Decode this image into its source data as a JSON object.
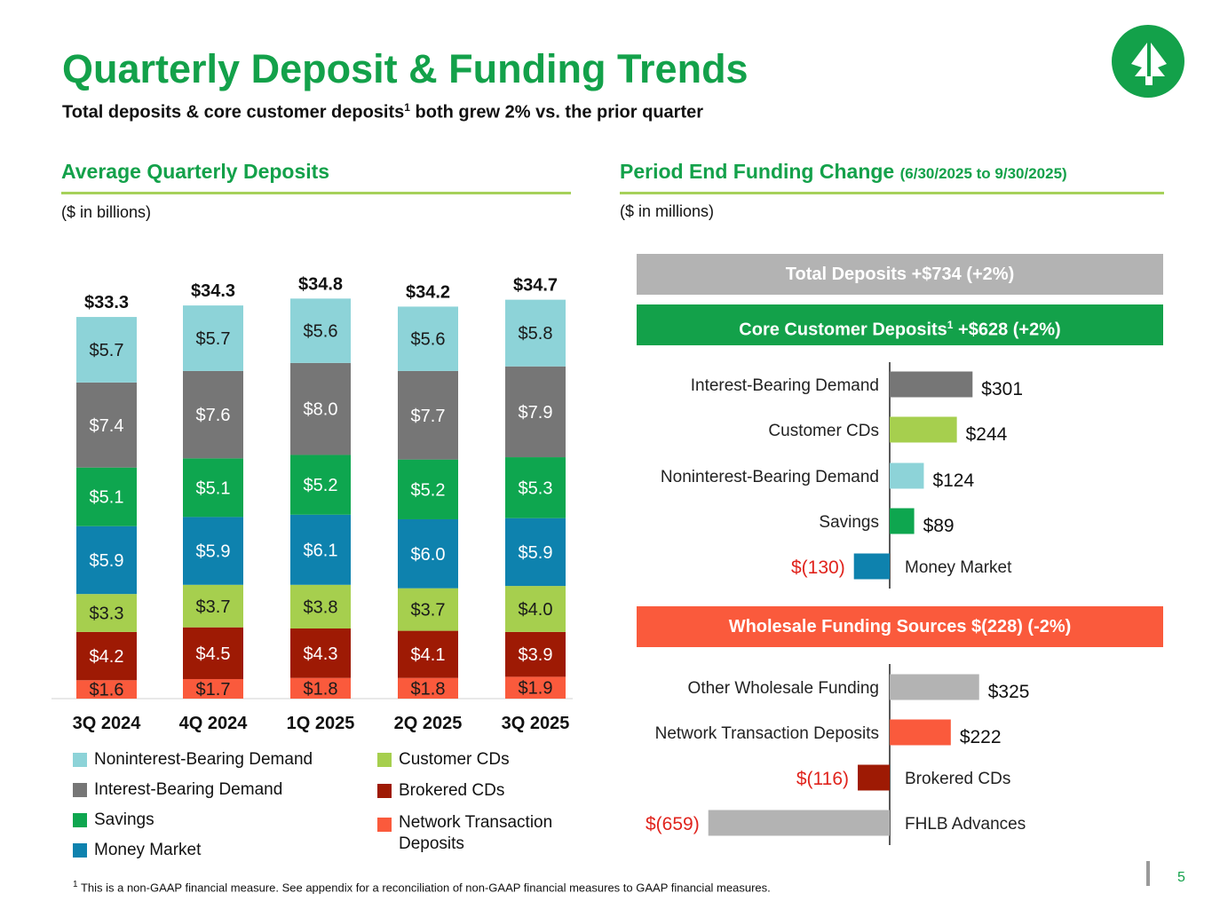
{
  "header": {
    "title": "Quarterly Deposit & Funding Trends",
    "subtitle_main": "Total deposits & core customer deposits",
    "subtitle_sup": "1",
    "subtitle_rest": " both grew 2% vs. the prior quarter"
  },
  "left_section": {
    "heading": "Average Quarterly Deposits",
    "units": "($ in billions)"
  },
  "right_section": {
    "heading": "Period End Funding Change",
    "heading_suffix": "(6/30/2025 to 9/30/2025)",
    "units": "($ in millions)",
    "total_banner": "Total Deposits +$734 (+2%)",
    "core_banner_main": "Core Customer Deposits",
    "core_banner_sup": "1",
    "core_banner_rest": " +$628 (+2%)",
    "wholesale_banner": "Wholesale Funding Sources $(228) (-2%)"
  },
  "colors": {
    "brand_green": "#13a14a",
    "rule_green": "#a6d15a",
    "total_banner": "#b3b3b3",
    "core_banner": "#13a14a",
    "wholesale_banner": "#fa5a3c",
    "negative_text": "#e0231c"
  },
  "chart_data": [
    {
      "type": "bar",
      "stacked": true,
      "title": "Average Quarterly Deposits",
      "units": "$ in billions",
      "categories": [
        "3Q 2024",
        "4Q 2024",
        "1Q 2025",
        "2Q 2025",
        "3Q 2025"
      ],
      "totals": [
        "$33.3",
        "$34.3",
        "$34.8",
        "$34.2",
        "$34.7"
      ],
      "series": [
        {
          "name": "Network Transaction Deposits",
          "color": "#fa5a3c",
          "text_color": "#1a1a1a",
          "values": [
            1.6,
            1.7,
            1.8,
            1.8,
            1.9
          ],
          "labels": [
            "$1.6",
            "$1.7",
            "$1.8",
            "$1.8",
            "$1.9"
          ]
        },
        {
          "name": "Brokered CDs",
          "color": "#9e1a04",
          "text_color": "#ffffff",
          "values": [
            4.2,
            4.5,
            4.3,
            4.1,
            3.9
          ],
          "labels": [
            "$4.2",
            "$4.5",
            "$4.3",
            "$4.1",
            "$3.9"
          ]
        },
        {
          "name": "Customer CDs",
          "color": "#a6cf4e",
          "text_color": "#1a1a1a",
          "values": [
            3.3,
            3.7,
            3.8,
            3.7,
            4.0
          ],
          "labels": [
            "$3.3",
            "$3.7",
            "$3.8",
            "$3.7",
            "$4.0"
          ]
        },
        {
          "name": "Money Market",
          "color": "#0e82ae",
          "text_color": "#ffffff",
          "values": [
            5.9,
            5.9,
            6.1,
            6.0,
            5.9
          ],
          "labels": [
            "$5.9",
            "$5.9",
            "$6.1",
            "$6.0",
            "$5.9"
          ]
        },
        {
          "name": "Savings",
          "color": "#0ea64f",
          "text_color": "#ffffff",
          "values": [
            5.1,
            5.1,
            5.2,
            5.2,
            5.3
          ],
          "labels": [
            "$5.1",
            "$5.1",
            "$5.2",
            "$5.2",
            "$5.3"
          ]
        },
        {
          "name": "Interest-Bearing Demand",
          "color": "#767676",
          "text_color": "#ffffff",
          "values": [
            7.4,
            7.6,
            8.0,
            7.7,
            7.9
          ],
          "labels": [
            "$7.4",
            "$7.6",
            "$8.0",
            "$7.7",
            "$7.9"
          ]
        },
        {
          "name": "Noninterest-Bearing Demand",
          "color": "#8dd3d8",
          "text_color": "#1a1a1a",
          "values": [
            5.7,
            5.7,
            5.6,
            5.6,
            5.8
          ],
          "labels": [
            "$5.7",
            "$5.7",
            "$5.6",
            "$5.6",
            "$5.8"
          ]
        }
      ],
      "legend": {
        "left": [
          "Noninterest-Bearing Demand",
          "Interest-Bearing Demand",
          "Savings",
          "Money Market"
        ],
        "right": [
          "Customer CDs",
          "Brokered CDs",
          "Network Transaction Deposits"
        ],
        "right_display": [
          "Customer CDs",
          "Brokered CDs",
          "Network Transaction",
          "Deposits"
        ]
      }
    },
    {
      "type": "bar",
      "orientation": "horizontal",
      "title": "Core Customer Deposits +$628 (+2%)",
      "units": "$ in millions",
      "categories": [
        "Interest-Bearing Demand",
        "Customer CDs",
        "Noninterest-Bearing Demand",
        "Savings",
        "Money Market"
      ],
      "values": [
        301,
        244,
        124,
        89,
        -130
      ],
      "labels": [
        "$301",
        "$244",
        "$124",
        "$89",
        "$(130)"
      ],
      "colors": [
        "#767676",
        "#a6cf4e",
        "#8dd3d8",
        "#0ea64f",
        "#0e82ae"
      ]
    },
    {
      "type": "bar",
      "orientation": "horizontal",
      "title": "Wholesale Funding Sources $(228) (-2%)",
      "units": "$ in millions",
      "categories": [
        "Other Wholesale Funding",
        "Network Transaction Deposits",
        "Brokered CDs",
        "FHLB Advances"
      ],
      "values": [
        325,
        222,
        -116,
        -659
      ],
      "labels": [
        "$325",
        "$222",
        "$(116)",
        "$(659)"
      ],
      "colors": [
        "#b3b3b3",
        "#fa5a3c",
        "#9e1a04",
        "#b3b3b3"
      ]
    }
  ],
  "footnote": {
    "sup": "1",
    "text": " This is a non-GAAP financial measure. See appendix for a reconciliation of non-GAAP financial measures to GAAP financial measures."
  },
  "page_number": "5"
}
